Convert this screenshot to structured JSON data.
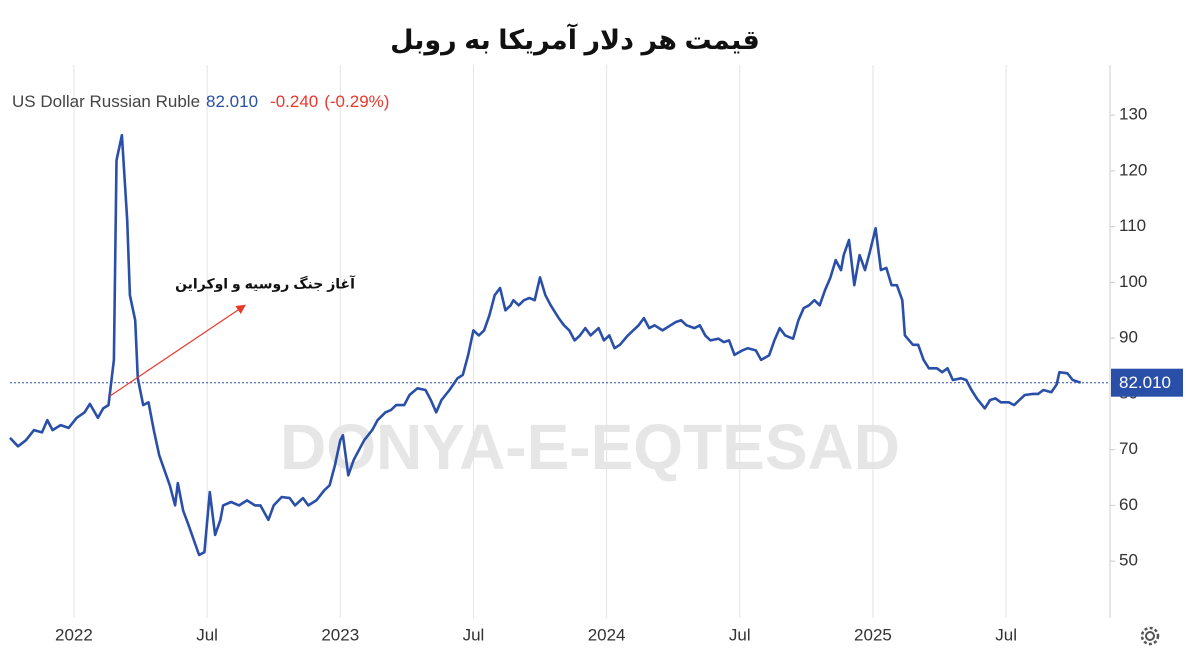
{
  "chart_data": {
    "type": "line",
    "title": "قیمت هر دلار آمریکا به روبل",
    "annotation": "آغاز جنگ روسیه و اوکراین",
    "watermark": "DONYA-E-EQTESAD",
    "price": {
      "value": 82.01,
      "label": "82.010"
    },
    "change": {
      "value": -0.24,
      "label": "-0.240"
    },
    "change_percent": {
      "value": -0.29,
      "label": "(-0.29%)"
    },
    "grid": "x",
    "xlim": [
      2021.76,
      2025.89
    ],
    "xticks": [
      {
        "value": 2022,
        "label": "2022"
      },
      {
        "value": 2022.5,
        "label": "Jul"
      },
      {
        "value": 2023,
        "label": "2023"
      },
      {
        "value": 2023.5,
        "label": "Jul"
      },
      {
        "value": 2024,
        "label": "2024"
      },
      {
        "value": 2024.5,
        "label": "Jul"
      },
      {
        "value": 2025,
        "label": "2025"
      },
      {
        "value": 2025.5,
        "label": "Jul"
      }
    ],
    "ylim": [
      39.8,
      139
    ],
    "yticks": [
      50,
      60,
      70,
      80,
      90,
      100,
      110,
      120,
      130
    ],
    "series": [
      {
        "name": "US Dollar Russian Ruble",
        "color": "#2a4fa8",
        "x": [
          2021.76,
          2021.79,
          2021.82,
          2021.85,
          2021.88,
          2021.9,
          2021.92,
          2021.95,
          2021.98,
          2022.01,
          2022.04,
          2022.06,
          2022.09,
          2022.11,
          2022.13,
          2022.15,
          2022.16,
          2022.18,
          2022.2,
          2022.21,
          2022.23,
          2022.24,
          2022.26,
          2022.28,
          2022.3,
          2022.32,
          2022.34,
          2022.36,
          2022.38,
          2022.39,
          2022.41,
          2022.43,
          2022.45,
          2022.47,
          2022.49,
          2022.51,
          2022.53,
          2022.55,
          2022.56,
          2022.59,
          2022.62,
          2022.65,
          2022.68,
          2022.7,
          2022.73,
          2022.75,
          2022.78,
          2022.81,
          2022.83,
          2022.86,
          2022.88,
          2022.91,
          2022.94,
          2022.96,
          2022.98,
          2023.0,
          2023.01,
          2023.03,
          2023.05,
          2023.06,
          2023.09,
          2023.12,
          2023.14,
          2023.17,
          2023.19,
          2023.21,
          2023.24,
          2023.26,
          2023.29,
          2023.32,
          2023.34,
          2023.36,
          2023.38,
          2023.41,
          2023.44,
          2023.46,
          2023.48,
          2023.5,
          2023.52,
          2023.54,
          2023.56,
          2023.58,
          2023.6,
          2023.62,
          2023.64,
          2023.65,
          2023.67,
          2023.69,
          2023.71,
          2023.73,
          2023.75,
          2023.77,
          2023.79,
          2023.82,
          2023.84,
          2023.86,
          2023.88,
          2023.9,
          2023.92,
          2023.94,
          2023.97,
          2023.99,
          2024.01,
          2024.03,
          2024.05,
          2024.08,
          2024.1,
          2024.12,
          2024.14,
          2024.16,
          2024.18,
          2024.21,
          2024.24,
          2024.26,
          2024.28,
          2024.3,
          2024.33,
          2024.35,
          2024.37,
          2024.39,
          2024.42,
          2024.44,
          2024.46,
          2024.48,
          2024.51,
          2024.53,
          2024.56,
          2024.58,
          2024.61,
          2024.63,
          2024.65,
          2024.67,
          2024.7,
          2024.72,
          2024.74,
          2024.76,
          2024.78,
          2024.8,
          2024.82,
          2024.84,
          2024.86,
          2024.88,
          2024.89,
          2024.91,
          2024.93,
          2024.95,
          2024.97,
          2024.99,
          2025.01,
          2025.03,
          2025.05,
          2025.07,
          2025.09,
          2025.11,
          2025.12,
          2025.15,
          2025.17,
          2025.19,
          2025.21,
          2025.24,
          2025.26,
          2025.28,
          2025.3,
          2025.33,
          2025.35,
          2025.37,
          2025.39,
          2025.42,
          2025.44,
          2025.46,
          2025.48,
          2025.51,
          2025.53,
          2025.55,
          2025.57,
          2025.6,
          2025.62,
          2025.64,
          2025.67,
          2025.69,
          2025.7,
          2025.73,
          2025.75,
          2025.78
        ],
        "values": [
          72.1,
          70.6,
          71.7,
          73.5,
          73.1,
          75.3,
          73.5,
          74.4,
          73.9,
          75.7,
          76.7,
          78.2,
          75.7,
          77.4,
          78.0,
          86.1,
          121.9,
          126.4,
          111.2,
          97.7,
          93.2,
          82.8,
          78.0,
          78.5,
          73.5,
          69.0,
          66.3,
          63.6,
          60.0,
          64.0,
          59.1,
          56.5,
          53.8,
          51.1,
          51.6,
          62.4,
          54.7,
          57.4,
          60.0,
          60.6,
          60.0,
          60.9,
          60.0,
          60.0,
          57.4,
          60.0,
          61.5,
          61.3,
          60.0,
          61.3,
          60.0,
          60.9,
          62.7,
          63.6,
          67.2,
          71.7,
          72.6,
          65.4,
          68.1,
          69.0,
          71.7,
          73.5,
          75.3,
          76.7,
          77.1,
          78.0,
          78.0,
          79.8,
          81.0,
          80.7,
          78.9,
          76.7,
          78.9,
          80.7,
          82.8,
          83.4,
          86.9,
          91.4,
          90.5,
          91.4,
          94.1,
          97.7,
          99.0,
          95.0,
          95.9,
          96.8,
          95.9,
          96.8,
          97.2,
          96.8,
          100.9,
          97.7,
          95.9,
          93.6,
          92.3,
          91.4,
          89.6,
          90.5,
          91.8,
          90.5,
          91.8,
          89.6,
          90.5,
          88.2,
          88.8,
          90.5,
          91.4,
          92.3,
          93.6,
          91.8,
          92.3,
          91.4,
          92.3,
          92.9,
          93.2,
          92.3,
          91.8,
          92.3,
          90.5,
          89.6,
          89.9,
          89.3,
          89.6,
          87.0,
          87.8,
          88.2,
          87.8,
          86.1,
          86.9,
          89.6,
          91.8,
          90.5,
          89.9,
          93.2,
          95.4,
          95.9,
          96.8,
          95.9,
          98.6,
          100.8,
          104.0,
          102.2,
          104.9,
          107.6,
          99.5,
          104.9,
          102.2,
          105.8,
          109.7,
          102.2,
          102.6,
          99.5,
          99.5,
          96.8,
          90.5,
          88.8,
          88.8,
          86.1,
          84.6,
          84.6,
          83.9,
          84.6,
          82.5,
          82.8,
          82.5,
          80.7,
          79.2,
          77.4,
          78.9,
          79.2,
          78.5,
          78.5,
          78.0,
          78.9,
          79.8,
          80.0,
          80.0,
          80.7,
          80.3,
          81.7,
          83.9,
          83.7,
          82.5,
          82.01
        ]
      }
    ]
  }
}
